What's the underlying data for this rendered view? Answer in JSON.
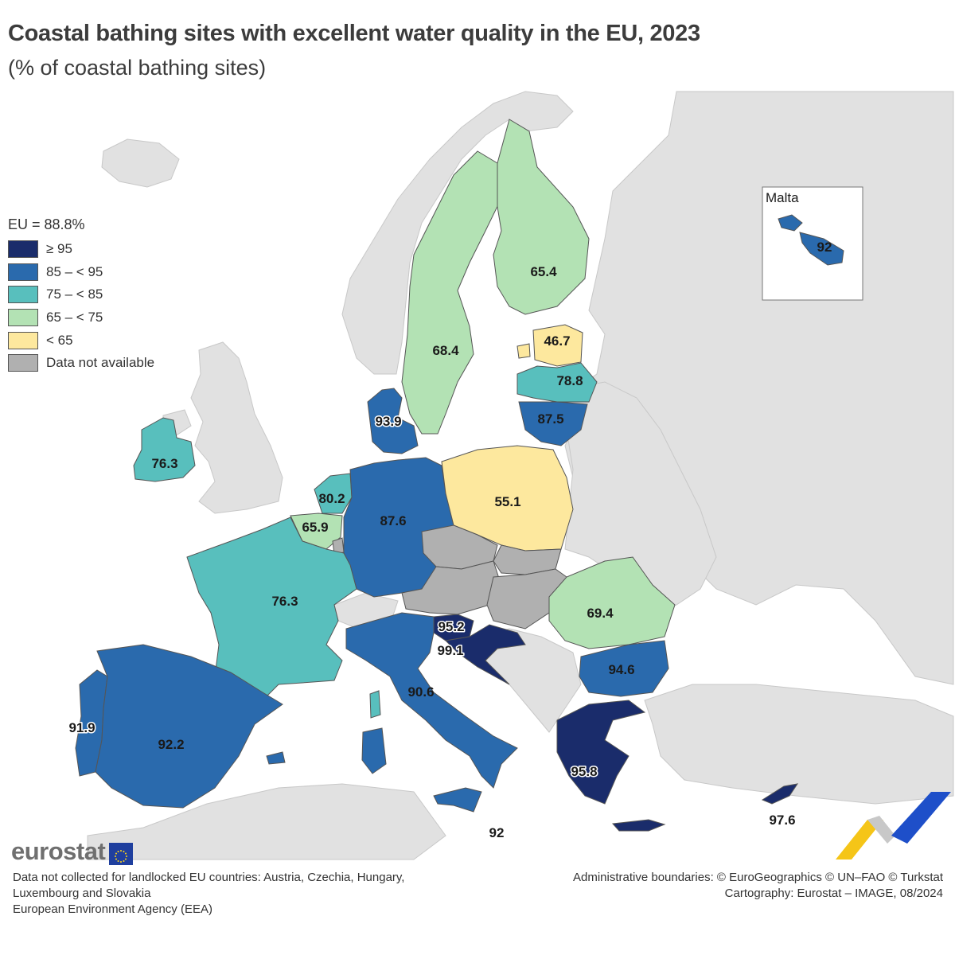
{
  "title": "Coastal bathing sites with excellent water quality in the EU, 2023",
  "subtitle": "(% of coastal bathing sites)",
  "legend": {
    "eu_label": "EU = 88.8%",
    "classes": [
      {
        "label": "≥ 95",
        "color": "#1a2c6b"
      },
      {
        "label": "85 – < 95",
        "color": "#2a6aad"
      },
      {
        "label": "75 – < 85",
        "color": "#58bfbd"
      },
      {
        "label": "65 – < 75",
        "color": "#b3e2b4"
      },
      {
        "label": "< 65",
        "color": "#fde89e"
      },
      {
        "label": "Data not available",
        "color": "#b0b0b0"
      }
    ]
  },
  "colors": {
    "non_eu": "#e1e1e1",
    "sea": "#ffffff",
    "border": "#ffffff",
    "outline": "#555555"
  },
  "countries": [
    {
      "name": "Ireland",
      "value": "76.3"
    },
    {
      "name": "Sweden",
      "value": "68.4"
    },
    {
      "name": "Finland",
      "value": "65.4"
    },
    {
      "name": "Estonia",
      "value": "46.7"
    },
    {
      "name": "Latvia",
      "value": "78.8"
    },
    {
      "name": "Lithuania",
      "value": "87.5"
    },
    {
      "name": "Denmark",
      "value": "93.9"
    },
    {
      "name": "Netherlands",
      "value": "80.2"
    },
    {
      "name": "Belgium",
      "value": "65.9"
    },
    {
      "name": "Germany",
      "value": "87.6"
    },
    {
      "name": "Poland",
      "value": "55.1"
    },
    {
      "name": "France",
      "value": "76.3"
    },
    {
      "name": "Slovenia",
      "value": "95.2"
    },
    {
      "name": "Croatia",
      "value": "99.1"
    },
    {
      "name": "Romania",
      "value": "69.4"
    },
    {
      "name": "Bulgaria",
      "value": "94.6"
    },
    {
      "name": "Italy",
      "value": "90.6"
    },
    {
      "name": "Portugal",
      "value": "91.9"
    },
    {
      "name": "Spain",
      "value": "92.2"
    },
    {
      "name": "Greece",
      "value": "95.8"
    },
    {
      "name": "Cyprus",
      "value": "97.6"
    },
    {
      "name": "Malta",
      "value": "92"
    },
    {
      "name": "Czechia",
      "value": ""
    },
    {
      "name": "Slovakia",
      "value": ""
    },
    {
      "name": "Austria",
      "value": ""
    },
    {
      "name": "Hungary",
      "value": ""
    },
    {
      "name": "Luxembourg",
      "value": ""
    }
  ],
  "inset": {
    "title": "Malta",
    "value": "92"
  },
  "malta_mainland_label": "92",
  "logo": {
    "text": "eurostat"
  },
  "footnote_left": [
    "Data not collected for landlocked EU countries: Austria, Czechia, Hungary,",
    "Luxembourg and Slovakia",
    "European Environment Agency (EEA)"
  ],
  "footnote_right": [
    "Administrative boundaries: © EuroGeographics © UN–FAO © Turkstat",
    "Cartography: Eurostat – IMAGE, 08/2024"
  ]
}
